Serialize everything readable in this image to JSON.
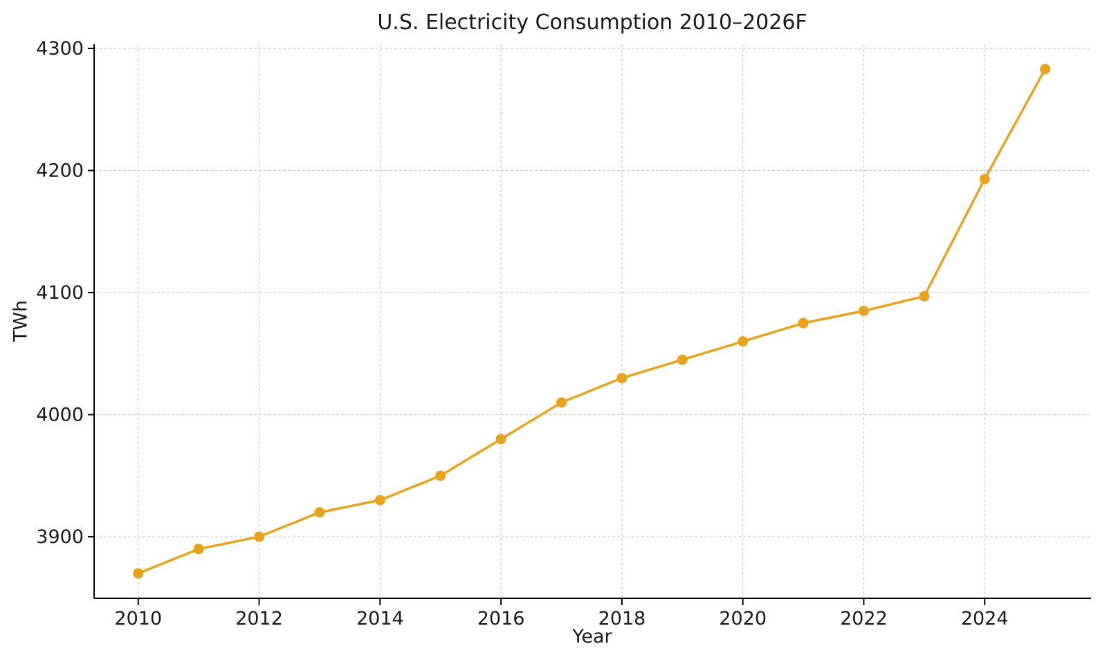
{
  "page": {
    "background": "#ffffff"
  },
  "chart_data": {
    "type": "line",
    "title": "U.S. Electricity Consumption 2010–2026F",
    "xlabel": "Year",
    "ylabel": "TWh",
    "x": [
      2010,
      2011,
      2012,
      2013,
      2014,
      2015,
      2016,
      2017,
      2018,
      2019,
      2020,
      2021,
      2022,
      2023,
      2024,
      2025
    ],
    "values": [
      3870,
      3890,
      3900,
      3920,
      3930,
      3950,
      3980,
      4010,
      4030,
      4045,
      4060,
      4075,
      4085,
      4097,
      4193,
      4283
    ],
    "xticks": [
      2010,
      2012,
      2014,
      2016,
      2018,
      2020,
      2022,
      2024
    ],
    "yticks": [
      3900,
      4000,
      4100,
      4200,
      4300
    ],
    "xlim": [
      2009.27,
      2025.76
    ],
    "ylim": [
      3849.6,
      4303.4
    ],
    "grid": true,
    "grid_style": "dashed",
    "legend": "none",
    "line_color": "#E8A21C",
    "marker": "circle",
    "grid_color": "#cccccc",
    "spine_color": "#000000",
    "text_color": "#1a1a1a"
  }
}
